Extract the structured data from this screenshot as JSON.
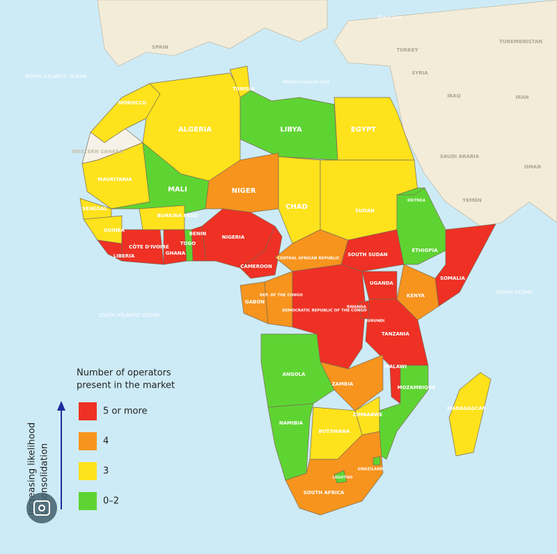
{
  "map": {
    "legend": {
      "title_lines": [
        "Number of operators",
        "present in the market"
      ],
      "items": [
        {
          "label": "5 or more",
          "color": "#ee3124"
        },
        {
          "label": "4",
          "color": "#f7941d"
        },
        {
          "label": "3",
          "color": "#fde21c"
        },
        {
          "label": "0–2",
          "color": "#5ed432"
        }
      ],
      "axis_lines": [
        "Increasing likelihood",
        "of consolidation"
      ]
    },
    "countries": [
      {
        "name": "MOROCCO",
        "level": 2
      },
      {
        "name": "WESTERN SAHARA"
      },
      {
        "name": "ALGERIA",
        "level": 2
      },
      {
        "name": "TUNISIA",
        "level": 2
      },
      {
        "name": "LIBYA",
        "level": 3
      },
      {
        "name": "EGYPT",
        "level": 2
      },
      {
        "name": "MAURITANIA",
        "level": 2
      },
      {
        "name": "MALI",
        "level": 3
      },
      {
        "name": "NIGER",
        "level": 1
      },
      {
        "name": "CHAD",
        "level": 2
      },
      {
        "name": "SUDAN",
        "level": 2
      },
      {
        "name": "SENEGAL",
        "level": 2
      },
      {
        "name": "GUINEA",
        "level": 2
      },
      {
        "name": "LIBERIA",
        "level": 0
      },
      {
        "name": "CÔTE D'IVOIRE",
        "level": 0
      },
      {
        "name": "BURKINA FASO",
        "level": 2
      },
      {
        "name": "GHANA",
        "level": 0
      },
      {
        "name": "TOGO",
        "level": 3
      },
      {
        "name": "BENIN",
        "level": 0
      },
      {
        "name": "NIGERIA",
        "level": 0
      },
      {
        "name": "CAMEROON",
        "level": 0
      },
      {
        "name": "CENTRAL AFRICAN REPUBLIC",
        "level": 1
      },
      {
        "name": "SOUTH SUDAN",
        "level": 0
      },
      {
        "name": "ETHIOPIA",
        "level": 3
      },
      {
        "name": "SOMALIA",
        "level": 0
      },
      {
        "name": "KENYA",
        "level": 1
      },
      {
        "name": "GABON",
        "level": 1
      },
      {
        "name": "REP. OF THE CONGO",
        "level": 1
      },
      {
        "name": "DEMOCRATIC REPUBLIC OF THE CONGO",
        "level": 0
      },
      {
        "name": "UGANDA",
        "level": 0
      },
      {
        "name": "TANZANIA",
        "level": 0
      },
      {
        "name": "ANGOLA",
        "level": 3
      },
      {
        "name": "ZAMBIA",
        "level": 1
      },
      {
        "name": "MALAWI",
        "level": 0
      },
      {
        "name": "MOZAMBIQUE",
        "level": 3
      },
      {
        "name": "ZIMBABWE",
        "level": 2
      },
      {
        "name": "NAMIBIA",
        "level": 3
      },
      {
        "name": "BOTSWANA",
        "level": 2
      },
      {
        "name": "SOUTH AFRICA",
        "level": 1
      },
      {
        "name": "MADAGASCAR",
        "level": 2
      },
      {
        "name": "ERITREA",
        "level": 3
      },
      {
        "name": "RWANDA",
        "level": 0
      },
      {
        "name": "BURUNDI",
        "level": 0
      },
      {
        "name": "LESOTHO",
        "level": 3
      },
      {
        "name": "SWAZILAND",
        "level": 3
      }
    ],
    "places": [
      "NORTH ATLANTIC OCEAN",
      "SOUTH ATLANTIC OCEAN",
      "INDIAN OCEAN",
      "Mediterranean Sea",
      "Black Sea",
      "SPAIN",
      "TURKEY",
      "SYRIA",
      "IRAQ",
      "IRAN",
      "SAUDI ARABIA",
      "YEMEN",
      "OMAN",
      "TURKMENISTAN"
    ]
  }
}
